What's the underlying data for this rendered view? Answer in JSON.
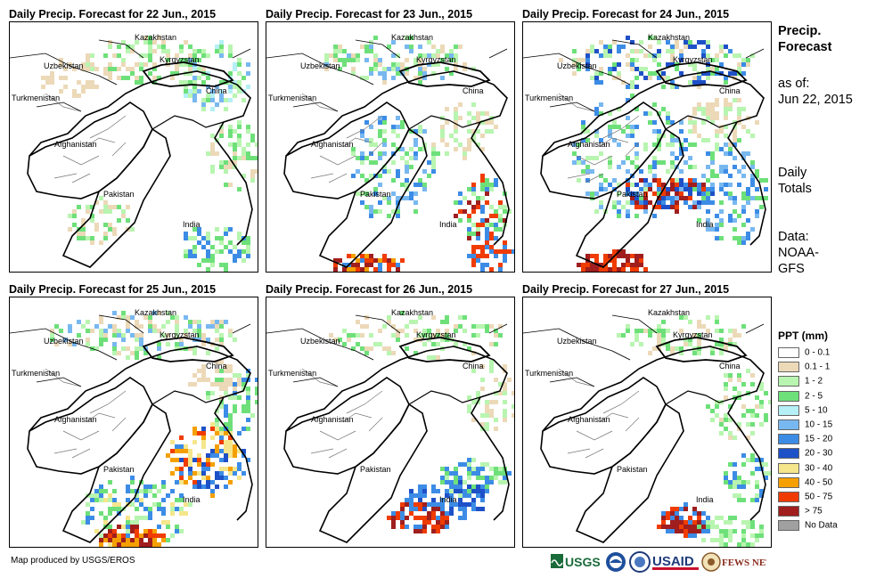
{
  "panels": [
    {
      "title": "Daily Precip. Forecast for 22 Jun., 2015"
    },
    {
      "title": "Daily Precip. Forecast for 23 Jun., 2015"
    },
    {
      "title": "Daily Precip. Forecast for 24 Jun., 2015"
    },
    {
      "title": "Daily Precip. Forecast for 25 Jun., 2015"
    },
    {
      "title": "Daily Precip. Forecast for 26 Jun., 2015"
    },
    {
      "title": "Daily Precip. Forecast for 27 Jun., 2015"
    }
  ],
  "map_labels": {
    "kazakhstan": "Kazakhstan",
    "uzbekistan": "Uzbekistan",
    "kyrgyzstan": "Kyrgyzstan",
    "turkmenistan": "Turkmenistan",
    "china": "China",
    "afghanistan": "Afghanistan",
    "pakistan": "Pakistan",
    "india": "India"
  },
  "sidebar": {
    "title_line1": "Precip.",
    "title_line2": "Forecast",
    "asof_line1": "as of:",
    "asof_line2": "Jun 22, 2015",
    "daily_line1": "Daily",
    "daily_line2": "Totals",
    "data_line1": "Data:",
    "data_line2": "NOAA-",
    "data_line3": "GFS"
  },
  "legend": {
    "title": "PPT (mm)",
    "items": [
      {
        "label": "0 - 0.1",
        "color": "#ffffff"
      },
      {
        "label": "0.1 - 1",
        "color": "#ecd9b8"
      },
      {
        "label": "1 - 2",
        "color": "#b8f5b0"
      },
      {
        "label": "2 - 5",
        "color": "#6ee07a"
      },
      {
        "label": "5 - 10",
        "color": "#b4f0f5"
      },
      {
        "label": "10 - 15",
        "color": "#78b8f0"
      },
      {
        "label": "15 - 20",
        "color": "#3c8ce6"
      },
      {
        "label": "20 - 30",
        "color": "#1e50c8"
      },
      {
        "label": "30 - 40",
        "color": "#f5e68c"
      },
      {
        "label": "40 - 50",
        "color": "#f5a000"
      },
      {
        "label": "50 - 75",
        "color": "#f03c00"
      },
      {
        "label": "> 75",
        "color": "#a01e1e"
      },
      {
        "label": "No Data",
        "color": "#a0a0a0"
      }
    ]
  },
  "credit": "Map produced by USGS/EROS",
  "logos": {
    "usgs": "USGS",
    "usaid": "USAID",
    "fewsnet": "FEWS NET"
  }
}
